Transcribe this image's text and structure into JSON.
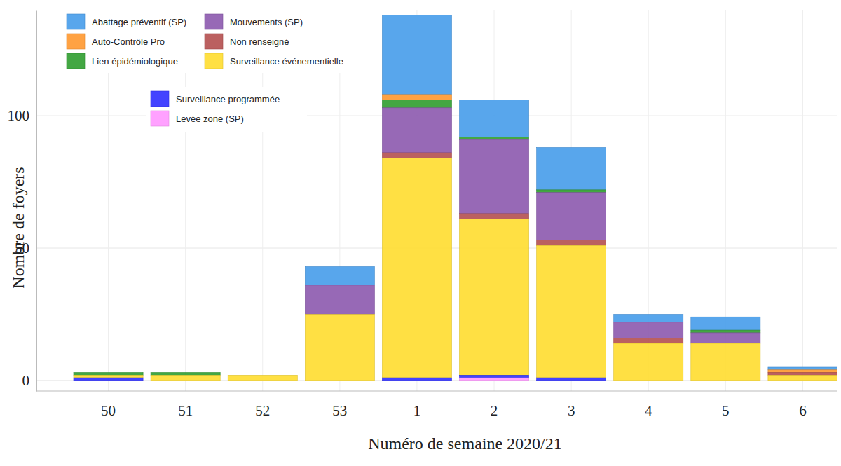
{
  "chart_data": {
    "type": "bar",
    "stacked": true,
    "grid": true,
    "legend": "top-left",
    "x_label": "Numéro de semaine 2020/21",
    "y_label": "Nombre de foyers",
    "categories": [
      "50",
      "51",
      "52",
      "53",
      "1",
      "2",
      "3",
      "4",
      "5",
      "6"
    ],
    "ylim": [
      -4,
      140
    ],
    "yticks": [
      0,
      50,
      100
    ],
    "series": [
      {
        "name": "Abattage préventif (SP)",
        "color": "#4a9eea",
        "values": [
          0,
          0,
          0,
          7,
          30,
          14,
          16,
          3,
          5,
          1
        ]
      },
      {
        "name": "Auto-Contrôle Pro",
        "color": "#ff9a33",
        "values": [
          0,
          0,
          0,
          0,
          2,
          0,
          0,
          0,
          0,
          1
        ]
      },
      {
        "name": "Lien épidémiologique",
        "color": "#33a033",
        "values": [
          1,
          1,
          0,
          0,
          3,
          1,
          1,
          0,
          1,
          0
        ]
      },
      {
        "name": "Mouvements (SP)",
        "color": "#8e5cb0",
        "values": [
          0,
          0,
          0,
          11,
          17,
          28,
          18,
          6,
          4,
          0
        ]
      },
      {
        "name": "Non renseigné",
        "color": "#b55252",
        "values": [
          0,
          0,
          0,
          0,
          2,
          2,
          2,
          2,
          0,
          1
        ]
      },
      {
        "name": "Surveillance événementielle",
        "color": "#ffdd33",
        "values": [
          1,
          2,
          2,
          25,
          83,
          59,
          50,
          14,
          14,
          2
        ]
      },
      {
        "name": "Surveillance programmée",
        "color": "#3333ff",
        "values": [
          1,
          0,
          0,
          0,
          1,
          1,
          1,
          0,
          0,
          0
        ]
      },
      {
        "name": "Levée zone (SP)",
        "color": "#ff99ff",
        "values": [
          0,
          0,
          0,
          0,
          0,
          1,
          0,
          0,
          0,
          0
        ]
      }
    ]
  }
}
